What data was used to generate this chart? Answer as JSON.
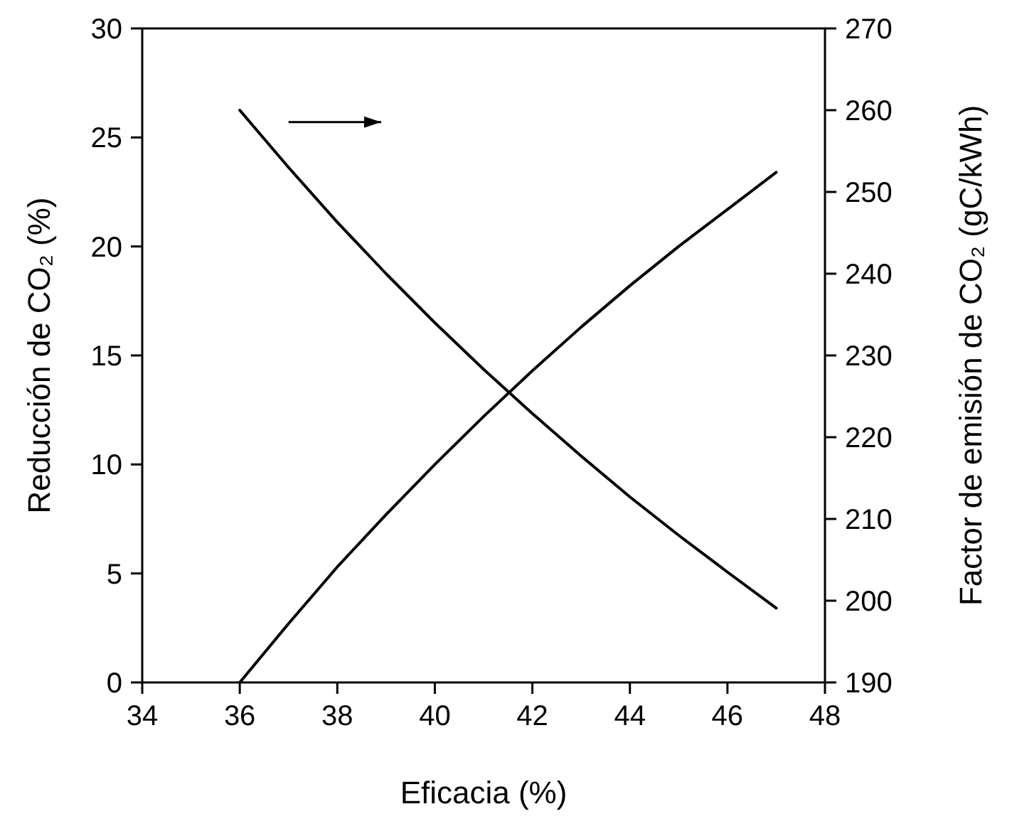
{
  "chart_data": {
    "type": "line",
    "xlabel": "Eficacia (%)",
    "ylabel": "Reducción de CO₂ (%)",
    "y2label": "Factor de emisión de CO₂ (gC/kWh)",
    "xlim": [
      34,
      48
    ],
    "xticks": [
      34,
      36,
      38,
      40,
      42,
      44,
      46,
      48
    ],
    "ylim": [
      0,
      30
    ],
    "yticks": [
      0,
      5,
      10,
      15,
      20,
      25,
      30
    ],
    "y2lim": [
      190,
      270
    ],
    "y2ticks": [
      190,
      200,
      210,
      220,
      230,
      240,
      250,
      260,
      270
    ],
    "grid": false,
    "marker": "none",
    "line_style": "solid",
    "series": [
      {
        "color": "#000000",
        "x": [
          36,
          37,
          38,
          39,
          40,
          41,
          42,
          43,
          44,
          45,
          46,
          47
        ],
        "values": [
          0,
          2.7,
          5.3,
          7.7,
          10,
          12.2,
          14.3,
          16.3,
          18.2,
          20,
          21.7,
          23.4
        ]
      },
      {
        "color": "#000000",
        "axis": "y2",
        "x": [
          36,
          37,
          38,
          39,
          40,
          41,
          42,
          43,
          44,
          45,
          46,
          47
        ],
        "values": [
          260,
          253,
          246.3,
          240,
          234,
          228.3,
          222.9,
          217.7,
          212.7,
          208,
          203.5,
          199.1
        ]
      }
    ]
  }
}
